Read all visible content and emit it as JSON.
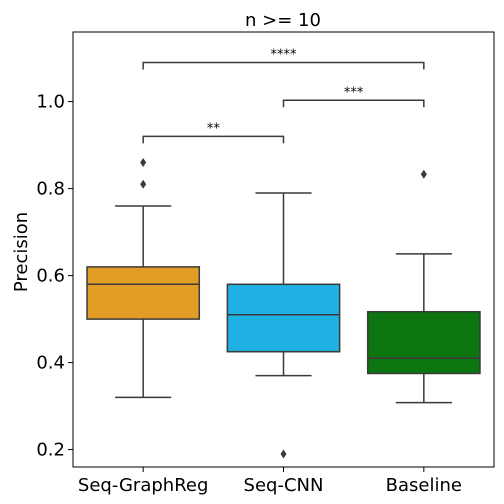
{
  "chart_data": {
    "type": "box",
    "title": "n >= 10",
    "xlabel": "",
    "ylabel": "Precision",
    "ylim": [
      0.16,
      1.16
    ],
    "yticks": [
      0.2,
      0.4,
      0.6,
      0.8,
      1.0
    ],
    "ytick_labels": [
      "0.2",
      "0.4",
      "0.6",
      "0.8",
      "1.0"
    ],
    "grid": false,
    "categories": [
      "Seq-GraphReg",
      "Seq-CNN",
      "Baseline"
    ],
    "boxes": [
      {
        "name": "Seq-GraphReg",
        "color": "#e29d24",
        "q1": 0.5,
        "median": 0.58,
        "q3": 0.62,
        "whisker_low": 0.32,
        "whisker_high": 0.76,
        "outliers": [
          0.81,
          0.86
        ]
      },
      {
        "name": "Seq-CNN",
        "color": "#1fb1e3",
        "q1": 0.425,
        "median": 0.51,
        "q3": 0.58,
        "whisker_low": 0.37,
        "whisker_high": 0.79,
        "outliers": [
          0.19
        ]
      },
      {
        "name": "Baseline",
        "color": "#0c750f",
        "q1": 0.375,
        "median": 0.41,
        "q3": 0.517,
        "whisker_low": 0.308,
        "whisker_high": 0.65,
        "outliers": [
          0.833
        ]
      }
    ],
    "significance": [
      {
        "from": 0,
        "to": 1,
        "label": "**",
        "y": 0.92
      },
      {
        "from": 1,
        "to": 2,
        "label": "***",
        "y": 1.003
      },
      {
        "from": 0,
        "to": 2,
        "label": "****",
        "y": 1.09
      }
    ]
  }
}
